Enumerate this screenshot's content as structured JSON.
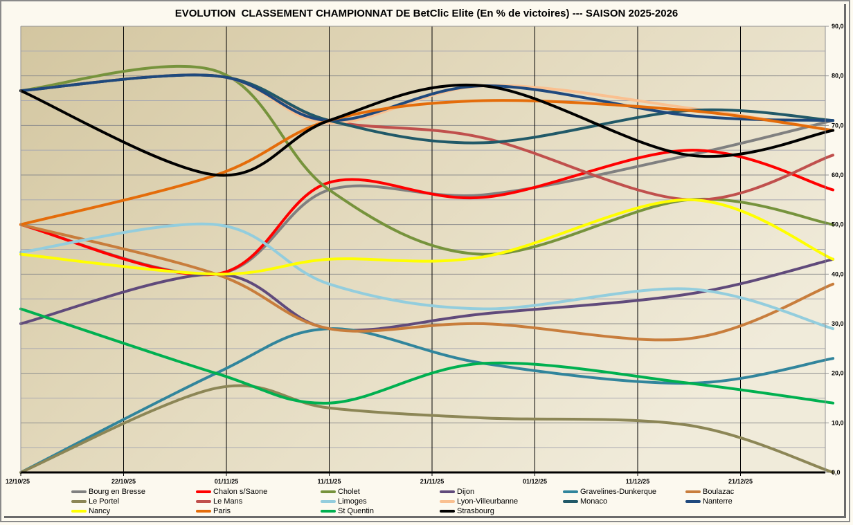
{
  "chart_data": {
    "type": "line",
    "title": "EVOLUTION  CLASSEMENT CHAMPIONNAT DE BetClic Elite (En % de victoires) --- SAISON 2025-2026",
    "xlabel": "",
    "ylabel": "",
    "ylim": [
      0,
      90
    ],
    "y_ticks": [
      "0,0",
      "10,0",
      "20,0",
      "30,0",
      "40,0",
      "50,0",
      "60,0",
      "70,0",
      "80,0",
      "90,0"
    ],
    "x_ticks": [
      "12/10/25",
      "22/10/25",
      "01/11/25",
      "11/11/25",
      "21/11/25",
      "01/12/25",
      "11/12/25",
      "21/12/25"
    ],
    "x_days": [
      0,
      19,
      30,
      45,
      65,
      79
    ],
    "grid": true,
    "legend_position": "bottom",
    "series": [
      {
        "name": "Bourg en Bresse",
        "color": "#808080",
        "values": [
          50,
          40,
          57,
          56,
          64,
          71
        ]
      },
      {
        "name": "Chalon s/Saone",
        "color": "#ff0000",
        "values": [
          50,
          40,
          58.5,
          55.5,
          65,
          57
        ]
      },
      {
        "name": "Cholet",
        "color": "#76933c",
        "values": [
          77,
          81,
          57,
          44,
          55,
          50
        ]
      },
      {
        "name": "Dijon",
        "color": "#604a7b",
        "values": [
          30,
          40,
          29,
          32,
          36,
          43
        ]
      },
      {
        "name": "Gravelines-Dunkerque",
        "color": "#31859c",
        "values": [
          0,
          20,
          29,
          22,
          18,
          23
        ]
      },
      {
        "name": "Boulazac",
        "color": "#c87d3c",
        "values": [
          50,
          40,
          29,
          30,
          27,
          38
        ]
      },
      {
        "name": "Le Portel",
        "color": "#8c8656",
        "values": [
          0,
          17,
          13,
          11,
          9.5,
          0
        ]
      },
      {
        "name": "Le Mans",
        "color": "#c0504d",
        "values": [
          77,
          80,
          71,
          67.5,
          55,
          64
        ]
      },
      {
        "name": "Limoges",
        "color": "#93cddd",
        "values": [
          44.4,
          50,
          38,
          33,
          37,
          29
        ]
      },
      {
        "name": "Lyon-Villeurbanne",
        "color": "#fac090",
        "values": [
          77,
          80,
          70.5,
          78,
          73.5,
          69
        ]
      },
      {
        "name": "Monaco",
        "color": "#215968",
        "values": [
          77,
          80,
          71,
          66.5,
          73,
          71
        ]
      },
      {
        "name": "Nanterre",
        "color": "#1f497d",
        "values": [
          77,
          80,
          71,
          78,
          72,
          71
        ]
      },
      {
        "name": "Nancy",
        "color": "#ffff00",
        "values": [
          44,
          40,
          43,
          43.5,
          55,
          43
        ]
      },
      {
        "name": "Paris",
        "color": "#e46c0a",
        "values": [
          50,
          60,
          71,
          75,
          73,
          69
        ]
      },
      {
        "name": "St Quentin",
        "color": "#00b050",
        "values": [
          33,
          20,
          14,
          22,
          18,
          14
        ]
      },
      {
        "name": "Strasbourg",
        "color": "#000000",
        "values": [
          77,
          60,
          71,
          78,
          64,
          69
        ]
      }
    ]
  }
}
